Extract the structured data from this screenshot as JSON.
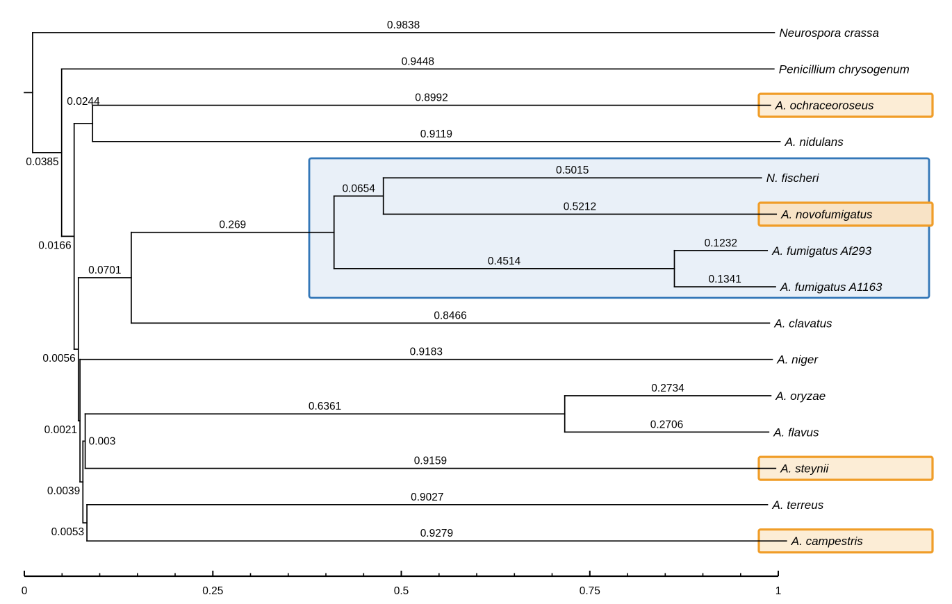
{
  "figure": {
    "description": "Phylogenetic tree of Aspergillus species and related fungi with branch-length labels and a scale axis from 0 to 1",
    "background_color": "#ffffff",
    "branch_color": "#000000",
    "text_color": "#000000"
  },
  "highlights": {
    "clade_box": {
      "members": [
        "N. fischeri",
        "A. novofumigatus",
        "A. fumigatus Af293",
        "A. fumigatus A1163"
      ],
      "fill": "#e9f0f8",
      "border": "#3377b8"
    },
    "species_boxes": {
      "members": [
        "A. ochraceoroseus",
        "A. novofumigatus",
        "A. steynii",
        "A. campestris"
      ],
      "fill": "#fcedd6",
      "fill_over_clade_box": "#f8e3c6",
      "border": "#f09d28"
    }
  },
  "axis": {
    "min": 0,
    "max": 1,
    "minor_step": 0.05,
    "tick_labels": [
      {
        "value": 0,
        "label": "0"
      },
      {
        "value": 0.25,
        "label": "0.25"
      },
      {
        "value": 0.5,
        "label": "0.5"
      },
      {
        "value": 0.75,
        "label": "0.75"
      },
      {
        "value": 1,
        "label": "1"
      }
    ]
  },
  "tree": {
    "root": {
      "id": "root",
      "branch_length": 0.011,
      "branch_label": null,
      "children": [
        {
          "id": "neurospora-crassa",
          "name": "Neurospora crassa",
          "branch_length": 0.9838,
          "branch_label": "0.9838",
          "boxed": false
        },
        {
          "id": "node-b",
          "branch_length": 0.0385,
          "branch_label": "0.0385",
          "children": [
            {
              "id": "penicillium-chrysogenum",
              "name": "Penicillium chrysogenum",
              "branch_length": 0.9448,
              "branch_label": "0.9448",
              "boxed": false
            },
            {
              "id": "node-c",
              "branch_length": 0.0166,
              "branch_label": "0.0166",
              "children": [
                {
                  "id": "node-e",
                  "branch_length": 0.0244,
                  "branch_label": "0.0244",
                  "children": [
                    {
                      "id": "a-ochraceoroseus",
                      "name": "A. ochraceoroseus",
                      "branch_length": 0.8992,
                      "branch_label": "0.8992",
                      "boxed": true
                    },
                    {
                      "id": "a-nidulans",
                      "name": "A. nidulans",
                      "branch_length": 0.9119,
                      "branch_label": "0.9119",
                      "boxed": false
                    }
                  ]
                },
                {
                  "id": "node-h",
                  "branch_length": 0.0056,
                  "branch_label": "0.0056",
                  "children": [
                    {
                      "id": "node-f",
                      "branch_length": 0.0701,
                      "branch_label": "0.0701",
                      "children": [
                        {
                          "id": "node-g",
                          "branch_length": 0.269,
                          "branch_label": "0.269",
                          "children": [
                            {
                              "id": "node-g1",
                              "branch_length": 0.0654,
                              "branch_label": "0.0654",
                              "children": [
                                {
                                  "id": "n-fischeri",
                                  "name": "N. fischeri",
                                  "branch_length": 0.5015,
                                  "branch_label": "0.5015",
                                  "boxed": false
                                },
                                {
                                  "id": "a-novofumigatus",
                                  "name": "A. novofumigatus",
                                  "branch_length": 0.5212,
                                  "branch_label": "0.5212",
                                  "boxed": true
                                }
                              ]
                            },
                            {
                              "id": "node-g2",
                              "branch_length": 0.4514,
                              "branch_label": "0.4514",
                              "children": [
                                {
                                  "id": "a-fumigatus-af293",
                                  "name": "A. fumigatus Af293",
                                  "branch_length": 0.1232,
                                  "branch_label": "0.1232",
                                  "boxed": false
                                },
                                {
                                  "id": "a-fumigatus-a1163",
                                  "name": "A. fumigatus A1163",
                                  "branch_length": 0.1341,
                                  "branch_label": "0.1341",
                                  "boxed": false
                                }
                              ]
                            }
                          ]
                        },
                        {
                          "id": "a-clavatus",
                          "name": "A. clavatus",
                          "branch_length": 0.8466,
                          "branch_label": "0.8466",
                          "boxed": false
                        }
                      ]
                    },
                    {
                      "id": "node-j",
                      "branch_length": 0.0021,
                      "branch_label": "0.0021",
                      "children": [
                        {
                          "id": "a-niger",
                          "name": "A. niger",
                          "branch_length": 0.9183,
                          "branch_label": "0.9183",
                          "boxed": false
                        },
                        {
                          "id": "node-k",
                          "branch_length": 0.0039,
                          "branch_label": "0.0039",
                          "children": [
                            {
                              "id": "node-l",
                              "branch_length": 0.003,
                              "branch_label": "0.003",
                              "children": [
                                {
                                  "id": "node-n",
                                  "branch_length": 0.6361,
                                  "branch_label": "0.6361",
                                  "children": [
                                    {
                                      "id": "a-oryzae",
                                      "name": "A. oryzae",
                                      "branch_length": 0.2734,
                                      "branch_label": "0.2734",
                                      "boxed": false
                                    },
                                    {
                                      "id": "a-flavus",
                                      "name": "A. flavus",
                                      "branch_length": 0.2706,
                                      "branch_label": "0.2706",
                                      "boxed": false
                                    }
                                  ]
                                },
                                {
                                  "id": "a-steynii",
                                  "name": "A. steynii",
                                  "branch_length": 0.9159,
                                  "branch_label": "0.9159",
                                  "boxed": true
                                }
                              ]
                            },
                            {
                              "id": "node-m",
                              "branch_length": 0.0053,
                              "branch_label": "0.0053",
                              "children": [
                                {
                                  "id": "a-terreus",
                                  "name": "A. terreus",
                                  "branch_length": 0.9027,
                                  "branch_label": "0.9027",
                                  "boxed": false
                                },
                                {
                                  "id": "a-campestris",
                                  "name": "A. campestris",
                                  "branch_length": 0.9279,
                                  "branch_label": "0.9279",
                                  "boxed": true
                                }
                              ]
                            }
                          ]
                        }
                      ]
                    }
                  ]
                }
              ]
            }
          ]
        }
      ]
    }
  }
}
